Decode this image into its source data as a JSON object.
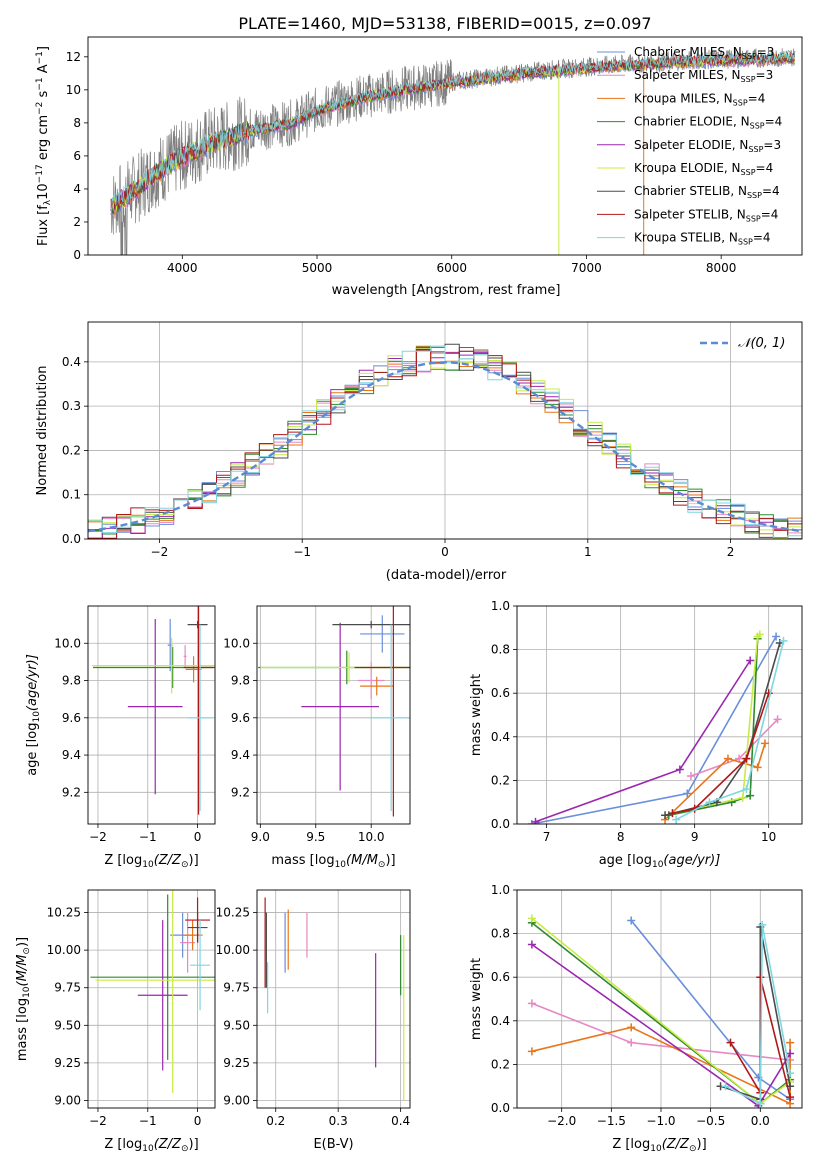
{
  "title": "PLATE=1460, MJD=53138, FIBERID=0015, z=0.097",
  "colors": {
    "Chabrier MILES": "#6a8fdb",
    "Salpeter MILES": "#e788c2",
    "Kroupa MILES": "#e8751a",
    "Chabrier ELODIE": "#2f8a2f",
    "Salpeter ELODIE": "#9b27b0",
    "Kroupa ELODIE": "#c8ec45",
    "Chabrier STELIB": "#4b4b4b",
    "Salpeter STELIB": "#b01818",
    "Kroupa STELIB": "#7fd6df",
    "data": "#7f7f7f"
  },
  "chart_data": [
    {
      "id": "spectrum",
      "type": "line",
      "title": "PLATE=1460, MJD=53138, FIBERID=0015, z=0.097",
      "xlabel": "wavelength [Angstrom, rest frame]",
      "ylabel": "Flux [f",
      "ylabel_sub": "λ",
      "ylabel_rest": "10",
      "ylabel_exp": "−17",
      "ylabel_unit": " erg cm",
      "ylabel_unit_exp": "−2",
      "ylabel_s": " s",
      "ylabel_s_exp": "−1",
      "ylabel_a": " A",
      "ylabel_a_exp": "−1",
      "ylabel_end": "]",
      "xlim": [
        3300,
        8600
      ],
      "ylim": [
        0,
        13.2
      ],
      "xticks": [
        "4000",
        "5000",
        "6000",
        "7000",
        "8000"
      ],
      "yticks": [
        "0",
        "2",
        "4",
        "6",
        "8",
        "10",
        "12"
      ],
      "continuum": [
        [
          3470,
          3.0
        ],
        [
          3600,
          3.7
        ],
        [
          3700,
          4.3
        ],
        [
          3800,
          5.0
        ],
        [
          4000,
          6.0
        ],
        [
          4200,
          6.8
        ],
        [
          4500,
          7.6
        ],
        [
          4800,
          8.0
        ],
        [
          5000,
          8.8
        ],
        [
          5300,
          9.5
        ],
        [
          5600,
          10.0
        ],
        [
          6000,
          10.5
        ],
        [
          6300,
          10.8
        ],
        [
          6600,
          11.1
        ],
        [
          7000,
          11.4
        ],
        [
          7400,
          11.6
        ],
        [
          7800,
          11.8
        ],
        [
          8200,
          11.9
        ],
        [
          8550,
          12.0
        ]
      ],
      "legend": [
        {
          "label": "Chabrier MILES, N",
          "sub": "SSP",
          "n": "=3"
        },
        {
          "label": "Salpeter MILES, N",
          "sub": "SSP",
          "n": "=3"
        },
        {
          "label": "Kroupa MILES, N",
          "sub": "SSP",
          "n": "=4"
        },
        {
          "label": "Chabrier ELODIE, N",
          "sub": "SSP",
          "n": "=4"
        },
        {
          "label": "Salpeter ELODIE, N",
          "sub": "SSP",
          "n": "=3"
        },
        {
          "label": "Kroupa ELODIE, N",
          "sub": "SSP",
          "n": "=4"
        },
        {
          "label": "Chabrier STELIB, N",
          "sub": "SSP",
          "n": "=4"
        },
        {
          "label": "Salpeter STELIB, N",
          "sub": "SSP",
          "n": "=4"
        },
        {
          "label": "Kroupa STELIB, N",
          "sub": "SSP",
          "n": "=4"
        }
      ],
      "grid": false,
      "legend_position": "right"
    },
    {
      "id": "residuals",
      "type": "step",
      "xlabel": "(data-model)/error",
      "ylabel": "Normed distribution",
      "xlim": [
        -2.5,
        2.5
      ],
      "ylim": [
        0,
        0.49
      ],
      "xticks": [
        "−2",
        "−1",
        "0",
        "1",
        "2"
      ],
      "yticks": [
        "0.0",
        "0.1",
        "0.2",
        "0.3",
        "0.4"
      ],
      "bin_width": 0.1,
      "legend": "𝒩(0, 1)",
      "legend_position": "top-right",
      "grid": true
    },
    {
      "id": "age_vs_Z",
      "type": "errorbar",
      "xlabel": "Z [log",
      "xlabel_sub": "10",
      "xlabel_rest": "(Z/Z",
      "xlabel_sub2": "⊙",
      "xlabel_end": ")]",
      "ylabel": "age  [log",
      "ylabel_sub": "10",
      "ylabel_rest": "(age/yr)]",
      "xlim": [
        -2.2,
        0.35
      ],
      "ylim": [
        9.03,
        10.2
      ],
      "xticks": [
        "−2",
        "−1",
        "0"
      ],
      "yticks": [
        "9.2",
        "9.4",
        "9.6",
        "9.8",
        "10.0"
      ],
      "points": [
        {
          "model": "Chabrier MILES",
          "x": -0.55,
          "xerr": 0.05,
          "y": 9.99,
          "yerr": 0.14
        },
        {
          "model": "Salpeter MILES",
          "x": -0.25,
          "xerr": 0.03,
          "y": 9.93,
          "yerr": 0.06
        },
        {
          "model": "Kroupa MILES",
          "x": -0.08,
          "xerr": 0.16,
          "y": 9.86,
          "yerr": 0.07
        },
        {
          "model": "Chabrier ELODIE",
          "x": -0.5,
          "xerr": 1.6,
          "y": 9.87,
          "yerr": 0.11
        },
        {
          "model": "Salpeter ELODIE",
          "x": -0.85,
          "xerr": 0.55,
          "y": 9.66,
          "yerr": 0.47
        },
        {
          "model": "Kroupa ELODIE",
          "x": -0.52,
          "xerr": 1.6,
          "y": 9.88,
          "yerr": 0.15
        },
        {
          "model": "Chabrier STELIB",
          "x": 0.0,
          "xerr": 0.2,
          "y": 10.1,
          "yerr": 0.02
        },
        {
          "model": "Salpeter STELIB",
          "x": 0.02,
          "xerr": 0.3,
          "y": 9.87,
          "yerr": 0.79
        },
        {
          "model": "Kroupa STELIB",
          "x": 0.05,
          "xerr": 0.25,
          "y": 9.6,
          "yerr": 0.5
        }
      ]
    },
    {
      "id": "age_vs_mass",
      "type": "errorbar",
      "xlabel": "mass [log",
      "xlabel_sub": "10",
      "xlabel_rest": "(M/M",
      "xlabel_sub2": "⊙",
      "xlabel_end": ")]",
      "xlim": [
        8.97,
        10.35
      ],
      "ylim": [
        9.03,
        10.2
      ],
      "xticks": [
        "9.0",
        "9.5",
        "10.0"
      ],
      "yticks": [
        "9.2",
        "9.4",
        "9.6",
        "9.8",
        "10.0"
      ],
      "points": [
        {
          "model": "Chabrier MILES",
          "x": 10.1,
          "xerr": 0.2,
          "y": 10.05,
          "yerr": 0.1
        },
        {
          "model": "Salpeter MILES",
          "x": 10.0,
          "xerr": 0.12,
          "y": 9.8,
          "yerr": 0.1
        },
        {
          "model": "Kroupa MILES",
          "x": 10.05,
          "xerr": 0.15,
          "y": 9.77,
          "yerr": 0.05
        },
        {
          "model": "Chabrier ELODIE",
          "x": 9.78,
          "xerr": 0.8,
          "y": 9.87,
          "yerr": 0.09
        },
        {
          "model": "Salpeter ELODIE",
          "x": 9.72,
          "xerr": 0.35,
          "y": 9.66,
          "yerr": 0.45
        },
        {
          "model": "Kroupa ELODIE",
          "x": 9.8,
          "xerr": 0.8,
          "y": 9.87,
          "yerr": 0.08
        },
        {
          "model": "Chabrier STELIB",
          "x": 10.0,
          "xerr": 0.35,
          "y": 10.1,
          "yerr": 0.02
        },
        {
          "model": "Salpeter STELIB",
          "x": 10.2,
          "xerr": 0.35,
          "y": 9.87,
          "yerr": 0.8
        },
        {
          "model": "Kroupa STELIB",
          "x": 10.18,
          "xerr": 0.2,
          "y": 9.6,
          "yerr": 0.5
        }
      ]
    },
    {
      "id": "weight_vs_age",
      "type": "line",
      "xlabel": "age  [log",
      "xlabel_sub": "10",
      "xlabel_rest": "(age/yr)]",
      "ylabel": "mass weight",
      "xlim": [
        6.6,
        10.45
      ],
      "ylim": [
        0,
        1.0
      ],
      "xticks": [
        "7",
        "8",
        "9",
        "10"
      ],
      "yticks": [
        "0.0",
        "0.2",
        "0.4",
        "0.6",
        "0.8",
        "1.0"
      ],
      "grid": true,
      "series": [
        {
          "model": "Chabrier MILES",
          "x": [
            6.8,
            8.9,
            10.1
          ],
          "y": [
            0.0,
            0.14,
            0.86
          ]
        },
        {
          "model": "Salpeter MILES",
          "x": [
            8.95,
            9.6,
            10.12
          ],
          "y": [
            0.22,
            0.3,
            0.48
          ]
        },
        {
          "model": "Kroupa MILES",
          "x": [
            8.6,
            9.45,
            9.85,
            9.95
          ],
          "y": [
            0.02,
            0.3,
            0.26,
            0.37
          ]
        },
        {
          "model": "Chabrier ELODIE",
          "x": [
            8.65,
            9.5,
            9.75,
            9.85
          ],
          "y": [
            0.04,
            0.1,
            0.13,
            0.85
          ]
        },
        {
          "model": "Salpeter ELODIE",
          "x": [
            6.85,
            8.8,
            9.75
          ],
          "y": [
            0.01,
            0.25,
            0.75
          ]
        },
        {
          "model": "Kroupa ELODIE",
          "x": [
            8.7,
            9.65,
            9.85,
            9.88
          ],
          "y": [
            0.05,
            0.12,
            0.86,
            0.87
          ]
        },
        {
          "model": "Chabrier STELIB",
          "x": [
            8.6,
            9.3,
            9.7,
            10.15
          ],
          "y": [
            0.04,
            0.1,
            0.3,
            0.83
          ]
        },
        {
          "model": "Salpeter STELIB",
          "x": [
            8.7,
            9.0,
            9.7,
            10.0
          ],
          "y": [
            0.05,
            0.07,
            0.3,
            0.6
          ]
        },
        {
          "model": "Kroupa STELIB",
          "x": [
            8.75,
            9.2,
            9.7,
            10.2
          ],
          "y": [
            0.02,
            0.1,
            0.16,
            0.84
          ]
        }
      ]
    },
    {
      "id": "mass_vs_Z",
      "type": "errorbar",
      "xlabel": "Z [log",
      "xlabel_sub": "10",
      "xlabel_rest": "(Z/Z",
      "xlabel_sub2": "⊙",
      "xlabel_end": ")]",
      "ylabel": "mass [log",
      "ylabel_sub": "10",
      "ylabel_rest": "(M/M",
      "ylabel_sub2": "⊙",
      "ylabel_end": ")]",
      "xlim": [
        -2.2,
        0.35
      ],
      "ylim": [
        8.95,
        10.4
      ],
      "xticks": [
        "−2",
        "−1",
        "0"
      ],
      "yticks": [
        "9.00",
        "9.25",
        "9.50",
        "9.75",
        "10.00",
        "10.25"
      ],
      "points": [
        {
          "model": "Chabrier MILES",
          "x": -0.3,
          "xerr": 0.25,
          "y": 10.1,
          "yerr": 0.15
        },
        {
          "model": "Salpeter MILES",
          "x": -0.2,
          "xerr": 0.15,
          "y": 10.05,
          "yerr": 0.2
        },
        {
          "model": "Kroupa MILES",
          "x": -0.1,
          "xerr": 0.2,
          "y": 10.1,
          "yerr": 0.1
        },
        {
          "model": "Chabrier ELODIE",
          "x": -0.6,
          "xerr": 1.55,
          "y": 9.82,
          "yerr": 0.55
        },
        {
          "model": "Salpeter ELODIE",
          "x": -0.7,
          "xerr": 0.5,
          "y": 9.7,
          "yerr": 0.5
        },
        {
          "model": "Kroupa ELODIE",
          "x": -0.5,
          "xerr": 1.55,
          "y": 9.8,
          "yerr": 0.75
        },
        {
          "model": "Chabrier STELIB",
          "x": 0.0,
          "xerr": 0.2,
          "y": 10.15,
          "yerr": 0.1
        },
        {
          "model": "Salpeter STELIB",
          "x": 0.0,
          "xerr": 0.25,
          "y": 10.2,
          "yerr": 0.15
        },
        {
          "model": "Kroupa STELIB",
          "x": 0.05,
          "xerr": 0.2,
          "y": 9.9,
          "yerr": 0.3
        }
      ]
    },
    {
      "id": "mass_vs_ebv",
      "type": "errorbar",
      "xlabel": "E(B-V)",
      "xlim": [
        0.17,
        0.415
      ],
      "ylim": [
        8.95,
        10.4
      ],
      "xticks": [
        "0.2",
        "0.3",
        "0.4"
      ],
      "yticks": [
        "9.00",
        "9.25",
        "9.50",
        "9.75",
        "10.00",
        "10.25"
      ],
      "points": [
        {
          "model": "Chabrier MILES",
          "x": 0.215,
          "xerr": 0.0,
          "y": 10.05,
          "yerr": 0.2
        },
        {
          "model": "Salpeter MILES",
          "x": 0.25,
          "xerr": 0.0,
          "y": 10.1,
          "yerr": 0.15
        },
        {
          "model": "Kroupa MILES",
          "x": 0.22,
          "xerr": 0.0,
          "y": 10.07,
          "yerr": 0.2
        },
        {
          "model": "Chabrier ELODIE",
          "x": 0.4,
          "xerr": 0.0,
          "y": 9.9,
          "yerr": 0.2
        },
        {
          "model": "Salpeter ELODIE",
          "x": 0.36,
          "xerr": 0.0,
          "y": 9.6,
          "yerr": 0.38
        },
        {
          "model": "Kroupa ELODIE",
          "x": 0.405,
          "xerr": 0.0,
          "y": 9.55,
          "yerr": 0.55
        },
        {
          "model": "Chabrier STELIB",
          "x": 0.185,
          "xerr": 0.0,
          "y": 10.0,
          "yerr": 0.25
        },
        {
          "model": "Salpeter STELIB",
          "x": 0.183,
          "xerr": 0.0,
          "y": 10.05,
          "yerr": 0.3
        },
        {
          "model": "Kroupa STELIB",
          "x": 0.187,
          "xerr": 0.0,
          "y": 9.75,
          "yerr": 0.17
        }
      ]
    },
    {
      "id": "weight_vs_Z",
      "type": "line",
      "xlabel": "Z [log",
      "xlabel_sub": "10",
      "xlabel_rest": "(Z/Z",
      "xlabel_sub2": "⊙",
      "xlabel_end": ")]",
      "ylabel": "mass weight",
      "xlim": [
        -2.45,
        0.42
      ],
      "ylim": [
        0,
        1.0
      ],
      "xticks": [
        "−2.0",
        "−1.5",
        "−1.0",
        "−0.5",
        "0.0"
      ],
      "yticks": [
        "0.0",
        "0.2",
        "0.4",
        "0.6",
        "0.8",
        "1.0"
      ],
      "grid": true,
      "series": [
        {
          "model": "Chabrier MILES",
          "x": [
            -1.3,
            -0.02,
            0.3
          ],
          "y": [
            0.86,
            0.14,
            0.04
          ]
        },
        {
          "model": "Salpeter MILES",
          "x": [
            -2.3,
            -1.3,
            0.3
          ],
          "y": [
            0.48,
            0.3,
            0.22
          ]
        },
        {
          "model": "Kroupa MILES",
          "x": [
            -2.3,
            -1.3,
            0.3,
            0.3
          ],
          "y": [
            0.26,
            0.37,
            0.02,
            0.3
          ]
        },
        {
          "model": "Chabrier ELODIE",
          "x": [
            -2.3,
            0.0,
            0.3
          ],
          "y": [
            0.85,
            0.02,
            0.13
          ]
        },
        {
          "model": "Salpeter ELODIE",
          "x": [
            -2.3,
            -0.02,
            0.3
          ],
          "y": [
            0.75,
            0.01,
            0.25
          ]
        },
        {
          "model": "Kroupa ELODIE",
          "x": [
            -2.3,
            0.0,
            0.3
          ],
          "y": [
            0.87,
            0.02,
            0.12
          ]
        },
        {
          "model": "Chabrier STELIB",
          "x": [
            -0.4,
            0.0,
            0.0,
            0.3
          ],
          "y": [
            0.1,
            0.04,
            0.83,
            0.1
          ]
        },
        {
          "model": "Salpeter STELIB",
          "x": [
            -0.3,
            0.0,
            0.0,
            0.3
          ],
          "y": [
            0.3,
            0.07,
            0.6,
            0.05
          ]
        },
        {
          "model": "Kroupa STELIB",
          "x": [
            -0.35,
            0.0,
            0.02,
            0.3
          ],
          "y": [
            0.1,
            0.02,
            0.84,
            0.16
          ]
        }
      ]
    }
  ]
}
